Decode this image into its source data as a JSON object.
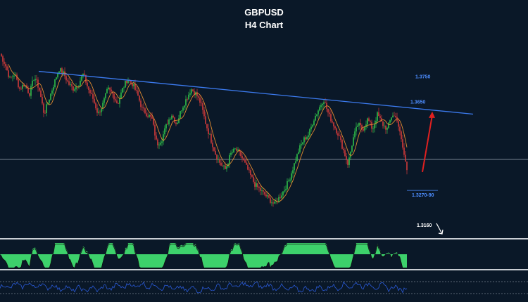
{
  "header": {
    "symbol": "GBPUSD",
    "timeframe": "H4 Chart"
  },
  "colors": {
    "background": "#0a1828",
    "trendline": "#3c7bf0",
    "candle_up": "#2fbf4a",
    "candle_down": "#d23a3a",
    "moving_average": "#e08a30",
    "price_level_line": "#8a96a3",
    "panel_divider": "#c9ced4",
    "oscillator_fill": "#3dd16b",
    "oscillator_line": "#111111",
    "momentum_line": "#2a5ad8",
    "arrow_up": "#e02020",
    "arrow_down": "#ffffff",
    "label_blue": "#4d8dff",
    "label_white": "#ffffff"
  },
  "chart_data": {
    "type": "candlestick",
    "symbol": "GBPUSD",
    "timeframe": "H4",
    "title": "GBPUSD",
    "subtitle": "H4 Chart",
    "y_range": [
      1.311,
      1.39
    ],
    "price_path_points": [
      1.384,
      1.38,
      1.374,
      1.376,
      1.37,
      1.372,
      1.368,
      1.375,
      1.37,
      1.36,
      1.366,
      1.372,
      1.378,
      1.376,
      1.372,
      1.37,
      1.372,
      1.376,
      1.37,
      1.366,
      1.36,
      1.364,
      1.37,
      1.368,
      1.364,
      1.37,
      1.374,
      1.372,
      1.368,
      1.362,
      1.36,
      1.358,
      1.348,
      1.35,
      1.356,
      1.36,
      1.356,
      1.362,
      1.366,
      1.37,
      1.368,
      1.364,
      1.356,
      1.35,
      1.344,
      1.34,
      1.338,
      1.344,
      1.346,
      1.344,
      1.34,
      1.336,
      1.332,
      1.33,
      1.328,
      1.326,
      1.324,
      1.327,
      1.33,
      1.334,
      1.34,
      1.346,
      1.35,
      1.352,
      1.358,
      1.362,
      1.366,
      1.36,
      1.356,
      1.352,
      1.346,
      1.34,
      1.35,
      1.356,
      1.354,
      1.358,
      1.354,
      1.36,
      1.356,
      1.354,
      1.36,
      1.358,
      1.348,
      1.338
    ],
    "horizontal_level": 1.342,
    "trendline": {
      "start": 1.377,
      "end": 1.36
    },
    "annotations": [
      {
        "text": "1.3750",
        "price": 1.375,
        "color": "blue"
      },
      {
        "text": "1.3650",
        "price": 1.365,
        "color": "blue"
      },
      {
        "text": "1.3270-90",
        "price": 1.328,
        "color": "blue"
      },
      {
        "text": "1.3160",
        "price": 1.316,
        "color": "white"
      }
    ],
    "arrows": [
      {
        "direction": "up",
        "from_price": 1.337,
        "to_price": 1.361
      },
      {
        "direction": "down",
        "from_price": 1.316,
        "to_price": 1.311
      }
    ],
    "indicators": [
      {
        "name": "oscillator",
        "type": "histogram-area"
      },
      {
        "name": "momentum",
        "type": "line",
        "levels": "dotted upper and lower bands"
      }
    ]
  }
}
